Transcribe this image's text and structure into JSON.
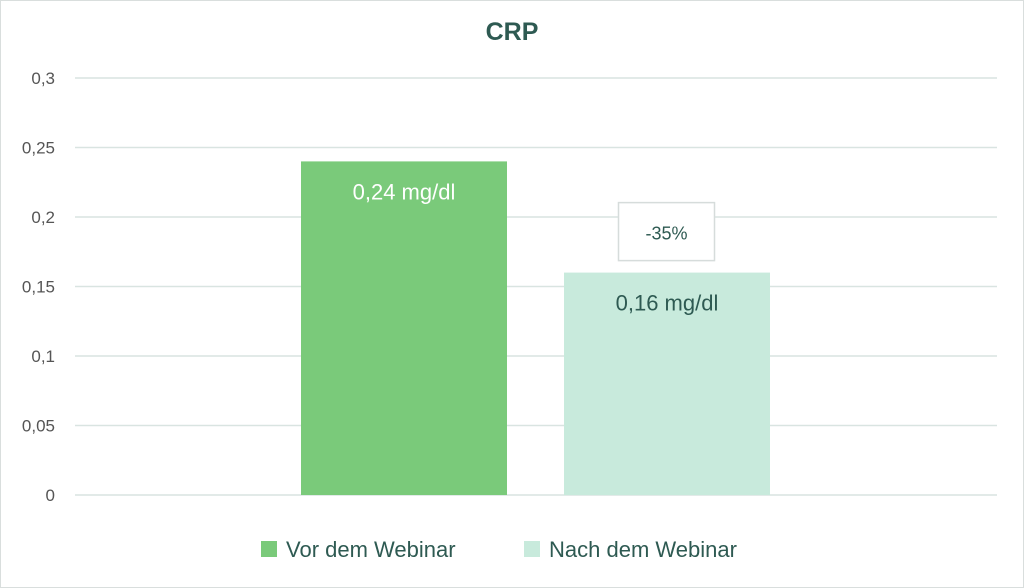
{
  "chart_data": {
    "type": "bar",
    "title": "CRP",
    "xlabel": "",
    "ylabel": "",
    "categories": [
      "Vor dem Webinar",
      "Nach dem Webinar"
    ],
    "values": [
      0.24,
      0.16
    ],
    "data_labels": [
      "0,24 mg/dl",
      "0,16 mg/dl"
    ],
    "ylim": [
      0,
      0.3
    ],
    "yticks": [
      0,
      0.05,
      0.1,
      0.15,
      0.2,
      0.25,
      0.3
    ],
    "ytick_labels": [
      "0",
      "0,05",
      "0,1",
      "0,15",
      "0,2",
      "0,25",
      "0,3"
    ],
    "grid": true,
    "legend": {
      "placement": "bottom",
      "entries": [
        "Vor dem Webinar",
        "Nach dem Webinar"
      ]
    },
    "annotations": [
      {
        "text": "-35%",
        "attached_to": "Nach dem Webinar"
      }
    ],
    "colors": {
      "bar_before": "#7aca7a",
      "bar_after": "#c8eadc",
      "label_on_before": "#ffffff",
      "label_on_after": "#2e5a52",
      "title": "#2e5a52",
      "ticks": "#555555",
      "grid": "#d9e4e1"
    }
  }
}
